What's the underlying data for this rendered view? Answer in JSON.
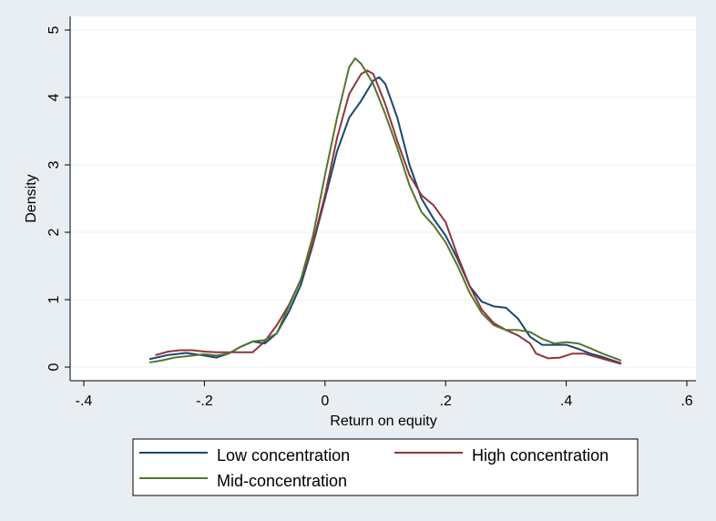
{
  "chart_data": {
    "type": "line",
    "title": "",
    "xlabel": "Return on equity",
    "ylabel": "Density",
    "xlim": [
      -0.4,
      0.6
    ],
    "ylim": [
      0,
      5
    ],
    "x_ticks": [
      -0.4,
      -0.2,
      0,
      0.2,
      0.4,
      0.6
    ],
    "x_tick_labels": [
      "-.4",
      "-.2",
      "0",
      ".2",
      ".4",
      ".6"
    ],
    "y_ticks": [
      0,
      1,
      2,
      3,
      4,
      5
    ],
    "y_tick_labels": [
      "0",
      "1",
      "2",
      "3",
      "4",
      "5"
    ],
    "grid": true,
    "legend_position": "bottom",
    "series": [
      {
        "name": "Low concentration",
        "color": "#1a476f",
        "x": [
          -0.29,
          -0.26,
          -0.23,
          -0.2,
          -0.18,
          -0.16,
          -0.14,
          -0.12,
          -0.1,
          -0.08,
          -0.06,
          -0.04,
          -0.02,
          0,
          0.02,
          0.04,
          0.06,
          0.08,
          0.09,
          0.1,
          0.12,
          0.14,
          0.16,
          0.18,
          0.2,
          0.22,
          0.24,
          0.26,
          0.28,
          0.3,
          0.32,
          0.34,
          0.36,
          0.38,
          0.4,
          0.42,
          0.44,
          0.46,
          0.49
        ],
        "y": [
          0.12,
          0.18,
          0.21,
          0.17,
          0.14,
          0.2,
          0.3,
          0.38,
          0.35,
          0.5,
          0.82,
          1.22,
          1.82,
          2.5,
          3.2,
          3.7,
          3.95,
          4.25,
          4.3,
          4.2,
          3.7,
          3.0,
          2.5,
          2.2,
          1.95,
          1.6,
          1.2,
          0.97,
          0.9,
          0.88,
          0.72,
          0.45,
          0.33,
          0.33,
          0.33,
          0.27,
          0.2,
          0.15,
          0.06
        ]
      },
      {
        "name": "High concentration",
        "color": "#90353b",
        "x": [
          -0.28,
          -0.26,
          -0.24,
          -0.22,
          -0.2,
          -0.18,
          -0.16,
          -0.14,
          -0.12,
          -0.1,
          -0.08,
          -0.06,
          -0.04,
          -0.02,
          0,
          0.02,
          0.04,
          0.06,
          0.07,
          0.08,
          0.1,
          0.12,
          0.14,
          0.16,
          0.18,
          0.2,
          0.22,
          0.24,
          0.26,
          0.28,
          0.3,
          0.32,
          0.34,
          0.35,
          0.37,
          0.39,
          0.41,
          0.43,
          0.45,
          0.47,
          0.49
        ],
        "y": [
          0.18,
          0.23,
          0.25,
          0.25,
          0.23,
          0.22,
          0.22,
          0.22,
          0.22,
          0.38,
          0.62,
          0.92,
          1.3,
          1.85,
          2.55,
          3.4,
          4.05,
          4.35,
          4.4,
          4.35,
          3.9,
          3.35,
          2.85,
          2.55,
          2.4,
          2.15,
          1.65,
          1.2,
          0.85,
          0.65,
          0.55,
          0.47,
          0.35,
          0.2,
          0.13,
          0.14,
          0.2,
          0.2,
          0.15,
          0.1,
          0.05
        ]
      },
      {
        "name": "Mid-concentration",
        "color": "#55752f",
        "x": [
          -0.29,
          -0.27,
          -0.25,
          -0.22,
          -0.2,
          -0.18,
          -0.16,
          -0.14,
          -0.12,
          -0.1,
          -0.08,
          -0.06,
          -0.04,
          -0.02,
          0,
          0.02,
          0.04,
          0.05,
          0.06,
          0.08,
          0.1,
          0.12,
          0.14,
          0.16,
          0.18,
          0.2,
          0.22,
          0.24,
          0.26,
          0.28,
          0.3,
          0.32,
          0.34,
          0.36,
          0.38,
          0.4,
          0.42,
          0.44,
          0.46,
          0.49
        ],
        "y": [
          0.07,
          0.1,
          0.14,
          0.17,
          0.19,
          0.17,
          0.2,
          0.3,
          0.38,
          0.4,
          0.5,
          0.9,
          1.3,
          1.95,
          2.85,
          3.7,
          4.45,
          4.58,
          4.5,
          4.2,
          3.75,
          3.25,
          2.7,
          2.3,
          2.1,
          1.85,
          1.5,
          1.1,
          0.8,
          0.62,
          0.55,
          0.55,
          0.52,
          0.42,
          0.35,
          0.37,
          0.35,
          0.28,
          0.2,
          0.1
        ]
      }
    ]
  }
}
